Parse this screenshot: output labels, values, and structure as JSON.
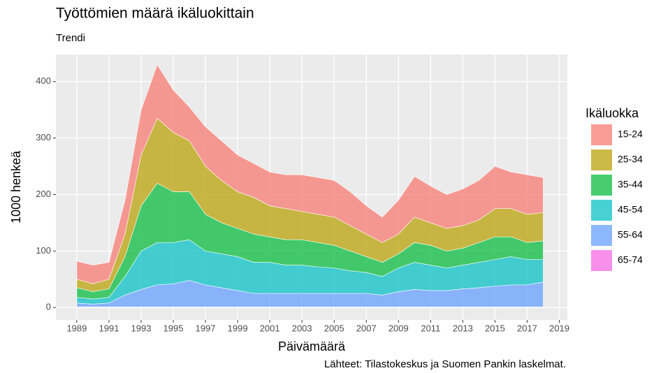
{
  "chart_data": {
    "type": "area",
    "stacked": true,
    "title": "Työttömien määrä ikäluokittain",
    "subtitle": "Trendi",
    "x_label": "Päivämäärä",
    "y_label": "1000 henkeä",
    "caption": "Lähteet: Tilastokeskus ja Suomen Pankin laskelmat.",
    "legend_title": "Ikäluokka",
    "legend": "right",
    "grid": true,
    "x": [
      1989,
      1990,
      1991,
      1992,
      1993,
      1994,
      1995,
      1996,
      1997,
      1998,
      1999,
      2000,
      2001,
      2002,
      2003,
      2004,
      2005,
      2006,
      2007,
      2008,
      2009,
      2010,
      2011,
      2012,
      2013,
      2014,
      2015,
      2016,
      2017,
      2018
    ],
    "xlim": [
      1987.7,
      2019.5
    ],
    "xticks": [
      1989,
      1991,
      1993,
      1995,
      1997,
      1999,
      2001,
      2003,
      2005,
      2007,
      2009,
      2011,
      2013,
      2015,
      2017,
      2019
    ],
    "ylim": [
      -22,
      448
    ],
    "yticks": [
      0,
      100,
      200,
      300,
      400
    ],
    "series": [
      {
        "name": "15-24",
        "color": "#F8766D",
        "values": [
          32,
          33,
          30,
          60,
          80,
          95,
          75,
          60,
          70,
          70,
          65,
          60,
          60,
          60,
          65,
          65,
          65,
          60,
          50,
          45,
          60,
          72,
          65,
          60,
          65,
          70,
          75,
          65,
          70,
          62
        ]
      },
      {
        "name": "25-34",
        "color": "#B79F00",
        "values": [
          15,
          14,
          17,
          40,
          90,
          115,
          105,
          90,
          85,
          75,
          65,
          65,
          55,
          55,
          50,
          50,
          50,
          45,
          40,
          35,
          35,
          45,
          40,
          40,
          40,
          40,
          50,
          50,
          50,
          50
        ]
      },
      {
        "name": "35-44",
        "color": "#00BA38",
        "values": [
          17,
          13,
          15,
          35,
          80,
          105,
          90,
          85,
          65,
          55,
          50,
          50,
          45,
          45,
          45,
          43,
          40,
          35,
          28,
          25,
          25,
          35,
          35,
          30,
          30,
          35,
          40,
          35,
          30,
          33
        ]
      },
      {
        "name": "45-54",
        "color": "#00BFC4",
        "values": [
          10,
          9,
          10,
          33,
          68,
          75,
          73,
          72,
          60,
          60,
          60,
          55,
          55,
          50,
          50,
          47,
          45,
          40,
          37,
          33,
          42,
          48,
          45,
          40,
          42,
          45,
          47,
          50,
          45,
          40
        ]
      },
      {
        "name": "55-64",
        "color": "#619CFF",
        "values": [
          7,
          5,
          7,
          21,
          31,
          39,
          41,
          47,
          39,
          34,
          29,
          24,
          24,
          24,
          24,
          24,
          24,
          24,
          24,
          21,
          27,
          31,
          29,
          29,
          32,
          34,
          37,
          39,
          39,
          44
        ]
      },
      {
        "name": "65-74",
        "color": "#F564E3",
        "values": [
          1,
          1,
          1,
          1,
          1,
          1,
          1,
          1,
          1,
          1,
          1,
          1,
          1,
          1,
          1,
          1,
          1,
          1,
          1,
          1,
          1,
          1,
          1,
          1,
          1,
          1,
          1,
          1,
          1,
          1
        ]
      }
    ]
  }
}
